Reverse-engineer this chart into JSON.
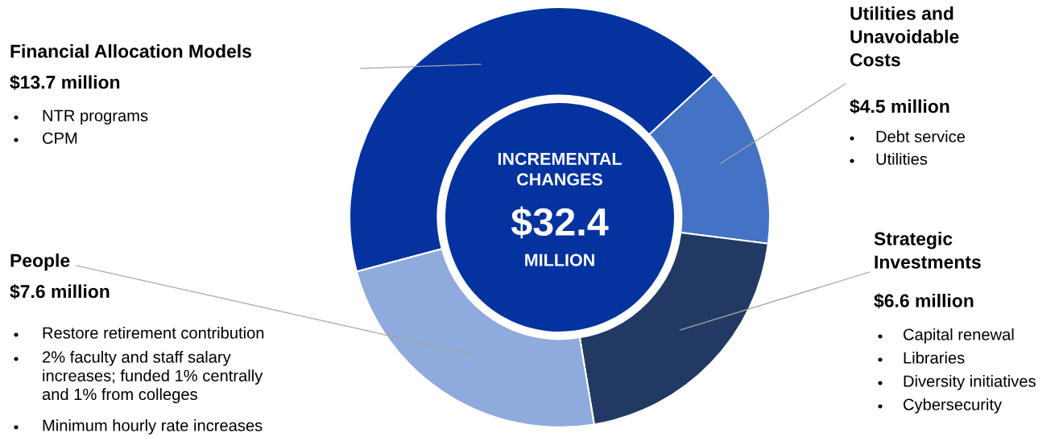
{
  "chart_data": {
    "type": "donut",
    "categories": [
      "Financial Allocation Models",
      "Utilities and\nUnavoidable\nCosts",
      "Strategic\nInvestments",
      "People"
    ],
    "values": [
      13.7,
      4.5,
      6.6,
      7.6
    ],
    "value_labels": [
      "$13.7 million",
      "$4.5 million",
      "$6.6 million",
      "$7.6 million"
    ],
    "colors": [
      "#0433a0",
      "#4472c4",
      "#223a63",
      "#8faadc"
    ],
    "annotations": [
      "NTR programs",
      "CPM",
      "Debt service",
      "Utilities",
      "Capital renewal",
      "Libraries",
      "Diversity initiatives",
      "Cybersecurity",
      "Restore retirement contribution",
      "2% faculty and staff salary\nincreases; funded 1% centrally\nand 1% from colleges",
      "Minimum hourly rate increases",
      "INCREMENTAL\nCHANGES",
      "$32.4",
      "MILLION"
    ]
  }
}
